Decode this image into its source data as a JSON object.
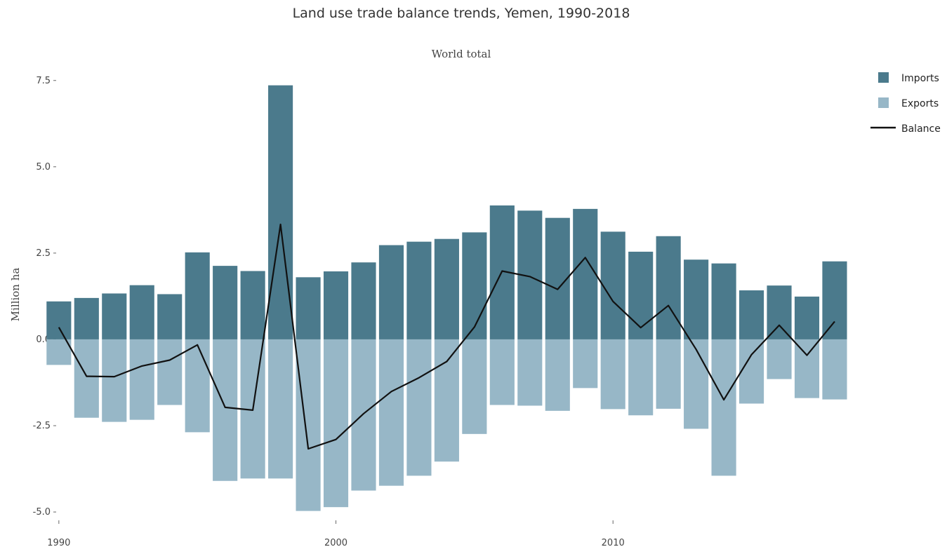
{
  "chart_data": {
    "type": "bar",
    "title": "Land use trade balance trends, Yemen, 1990-2018",
    "subtitle": "World total",
    "xlabel": "",
    "ylabel": "Million ha",
    "xlim": [
      1989.7,
      2019.8
    ],
    "ylim": [
      -5.1,
      7.8
    ],
    "x_ticks": [
      "1990",
      "2000",
      "2010"
    ],
    "x_tick_values": [
      1990,
      2000,
      2010
    ],
    "y_ticks": [
      "7.5",
      "5.0",
      "2.5",
      "0.0",
      "-2.5",
      "-5.0"
    ],
    "y_tick_values": [
      7.5,
      5.0,
      2.5,
      0.0,
      -2.5,
      -5.0
    ],
    "legend_position": "top-right",
    "colors": {
      "imports": "#4b7a8c",
      "exports": "#97b7c7",
      "balance": "#111111"
    },
    "x": [
      1990,
      1991,
      1992,
      1993,
      1994,
      1995,
      1996,
      1997,
      1998,
      1999,
      2000,
      2001,
      2002,
      2003,
      2004,
      2005,
      2006,
      2007,
      2008,
      2009,
      2010,
      2011,
      2012,
      2013,
      2014,
      2015,
      2016,
      2017,
      2018
    ],
    "series": [
      {
        "name": "Imports",
        "kind": "bar",
        "values": [
          1.1,
          1.2,
          1.33,
          1.57,
          1.31,
          2.52,
          2.13,
          1.98,
          7.36,
          1.8,
          1.97,
          2.23,
          2.73,
          2.83,
          2.91,
          3.1,
          3.88,
          3.73,
          3.52,
          3.78,
          3.12,
          2.54,
          2.99,
          2.31,
          2.2,
          1.42,
          1.56,
          1.24,
          2.26
        ]
      },
      {
        "name": "Exports",
        "kind": "bar",
        "values": [
          -0.74,
          -2.27,
          -2.39,
          -2.33,
          -1.9,
          -2.69,
          -4.1,
          -4.03,
          -4.03,
          -4.97,
          -4.86,
          -4.38,
          -4.24,
          -3.95,
          -3.54,
          -2.74,
          -1.9,
          -1.92,
          -2.07,
          -1.41,
          -2.02,
          -2.2,
          -2.01,
          -2.59,
          -3.95,
          -1.86,
          -1.15,
          -1.7,
          -1.74
        ]
      },
      {
        "name": "Balance",
        "kind": "line",
        "values": [
          0.35,
          -1.07,
          -1.08,
          -0.77,
          -0.6,
          -0.16,
          -1.97,
          -2.05,
          3.33,
          -3.17,
          -2.9,
          -2.15,
          -1.51,
          -1.11,
          -0.64,
          0.36,
          1.98,
          1.82,
          1.45,
          2.37,
          1.1,
          0.34,
          0.98,
          -0.29,
          -1.75,
          -0.44,
          0.41,
          -0.46,
          0.52
        ]
      }
    ]
  }
}
